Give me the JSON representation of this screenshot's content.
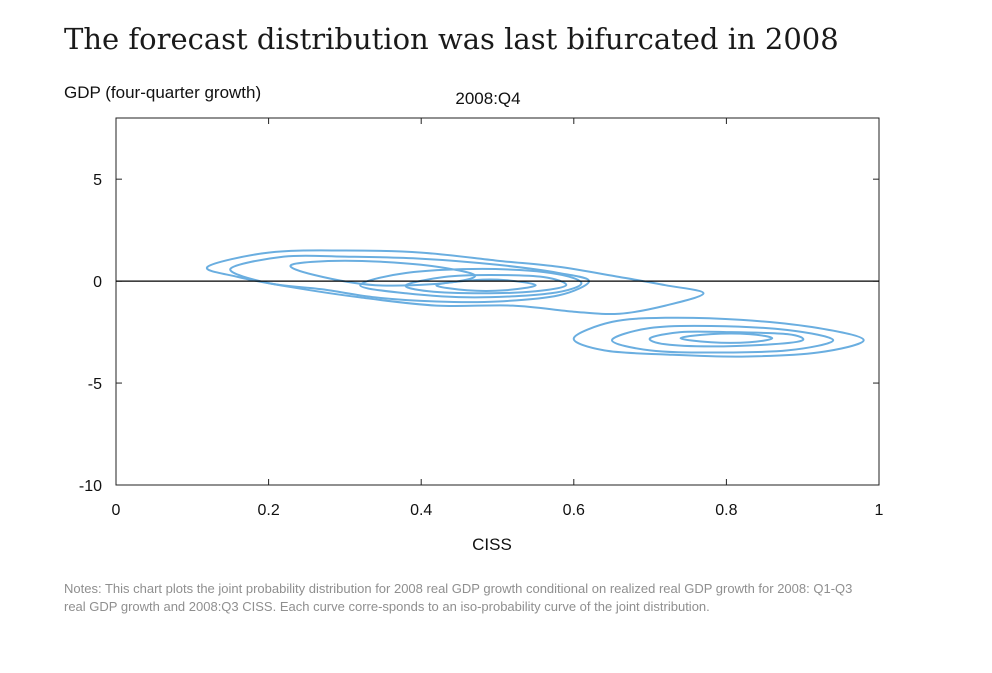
{
  "title": "The forecast distribution was last bifurcated in 2008",
  "notes": "Notes: This chart plots the joint probability distribution for 2008 real GDP growth conditional on realized real GDP growth for 2008: Q1-Q3 real GDP growth and 2008:Q3 CISS. Each curve corre-sponds to an iso-probability curve of the joint distribution.",
  "colors": {
    "contour": "#6aaee0",
    "axis": "#222222",
    "zero_line": "#000000"
  },
  "chart_data": {
    "type": "contour",
    "title": "2008:Q4",
    "ylabel": "GDP (four-quarter growth)",
    "xlabel": "CISS",
    "xlim": [
      0,
      1
    ],
    "ylim": [
      -10,
      8
    ],
    "xticks": [
      0,
      0.2,
      0.4,
      0.6,
      0.8,
      1
    ],
    "xtick_labels": [
      "0",
      "0.2",
      "0.4",
      "0.6",
      "0.8",
      "1"
    ],
    "yticks": [
      -10,
      -5,
      0,
      5
    ],
    "ytick_labels": [
      "-10",
      "-5",
      "0",
      "5"
    ],
    "reference_line_y": 0,
    "contours": [
      {
        "level": "outer",
        "points": [
          [
            0.12,
            0.7
          ],
          [
            0.2,
            1.4
          ],
          [
            0.3,
            1.5
          ],
          [
            0.4,
            1.4
          ],
          [
            0.5,
            1.0
          ],
          [
            0.58,
            0.7
          ],
          [
            0.66,
            0.2
          ],
          [
            0.72,
            -0.2
          ],
          [
            0.77,
            -0.6
          ],
          [
            0.72,
            -1.2
          ],
          [
            0.66,
            -1.6
          ],
          [
            0.6,
            -1.5
          ],
          [
            0.52,
            -1.2
          ],
          [
            0.42,
            -1.2
          ],
          [
            0.32,
            -0.8
          ],
          [
            0.23,
            -0.3
          ],
          [
            0.16,
            0.2
          ],
          [
            0.12,
            0.7
          ]
        ]
      },
      {
        "level": "mid-left",
        "points": [
          [
            0.15,
            0.6
          ],
          [
            0.22,
            1.2
          ],
          [
            0.3,
            1.2
          ],
          [
            0.4,
            1.1
          ],
          [
            0.5,
            0.8
          ],
          [
            0.58,
            0.4
          ],
          [
            0.62,
            0.0
          ],
          [
            0.58,
            -0.7
          ],
          [
            0.5,
            -1.0
          ],
          [
            0.42,
            -1.0
          ],
          [
            0.34,
            -0.8
          ],
          [
            0.27,
            -0.4
          ],
          [
            0.2,
            -0.1
          ],
          [
            0.15,
            0.6
          ]
        ]
      },
      {
        "level": "inner-left",
        "points": [
          [
            0.23,
            0.8
          ],
          [
            0.3,
            1.0
          ],
          [
            0.4,
            0.8
          ],
          [
            0.47,
            0.3
          ],
          [
            0.43,
            -0.1
          ],
          [
            0.34,
            -0.2
          ],
          [
            0.26,
            0.3
          ],
          [
            0.23,
            0.8
          ]
        ]
      },
      {
        "level": "mode-1",
        "points": [
          [
            0.32,
            -0.2
          ],
          [
            0.38,
            0.4
          ],
          [
            0.48,
            0.6
          ],
          [
            0.57,
            0.4
          ],
          [
            0.61,
            -0.1
          ],
          [
            0.57,
            -0.6
          ],
          [
            0.47,
            -0.8
          ],
          [
            0.38,
            -0.6
          ],
          [
            0.32,
            -0.2
          ]
        ]
      },
      {
        "level": "mode-1-core",
        "points": [
          [
            0.38,
            -0.2
          ],
          [
            0.43,
            0.2
          ],
          [
            0.49,
            0.3
          ],
          [
            0.56,
            0.2
          ],
          [
            0.59,
            -0.2
          ],
          [
            0.55,
            -0.5
          ],
          [
            0.48,
            -0.6
          ],
          [
            0.41,
            -0.5
          ],
          [
            0.38,
            -0.2
          ]
        ]
      },
      {
        "level": "mode-1-peak",
        "points": [
          [
            0.42,
            -0.2
          ],
          [
            0.47,
            0.05
          ],
          [
            0.51,
            0.05
          ],
          [
            0.55,
            -0.2
          ],
          [
            0.51,
            -0.45
          ],
          [
            0.46,
            -0.45
          ],
          [
            0.42,
            -0.2
          ]
        ]
      },
      {
        "level": "mode-2-outer",
        "points": [
          [
            0.6,
            -2.8
          ],
          [
            0.65,
            -2.0
          ],
          [
            0.72,
            -1.8
          ],
          [
            0.82,
            -1.9
          ],
          [
            0.92,
            -2.3
          ],
          [
            0.98,
            -2.9
          ],
          [
            0.92,
            -3.5
          ],
          [
            0.82,
            -3.7
          ],
          [
            0.72,
            -3.6
          ],
          [
            0.64,
            -3.4
          ],
          [
            0.6,
            -2.8
          ]
        ]
      },
      {
        "level": "mode-2-mid",
        "points": [
          [
            0.65,
            -2.9
          ],
          [
            0.7,
            -2.3
          ],
          [
            0.78,
            -2.2
          ],
          [
            0.88,
            -2.4
          ],
          [
            0.94,
            -2.9
          ],
          [
            0.88,
            -3.4
          ],
          [
            0.78,
            -3.5
          ],
          [
            0.7,
            -3.4
          ],
          [
            0.65,
            -2.9
          ]
        ]
      },
      {
        "level": "mode-2-inner",
        "points": [
          [
            0.7,
            -2.8
          ],
          [
            0.74,
            -2.5
          ],
          [
            0.8,
            -2.5
          ],
          [
            0.88,
            -2.6
          ],
          [
            0.9,
            -2.9
          ],
          [
            0.86,
            -3.1
          ],
          [
            0.78,
            -3.2
          ],
          [
            0.72,
            -3.1
          ],
          [
            0.7,
            -2.8
          ]
        ]
      },
      {
        "level": "mode-2-core",
        "points": [
          [
            0.74,
            -2.8
          ],
          [
            0.78,
            -2.6
          ],
          [
            0.83,
            -2.6
          ],
          [
            0.86,
            -2.8
          ],
          [
            0.83,
            -3.0
          ],
          [
            0.78,
            -3.0
          ],
          [
            0.74,
            -2.8
          ]
        ]
      }
    ]
  }
}
